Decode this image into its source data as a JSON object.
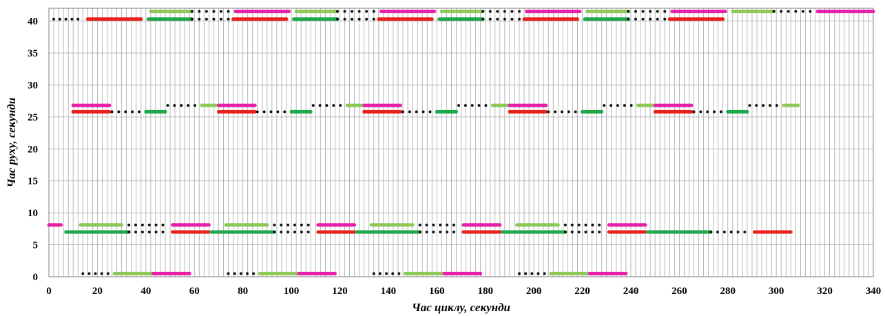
{
  "chart_data": {
    "type": "timeline",
    "xlabel": "Час циклу, секунди",
    "ylabel": "Час руху, секунди",
    "xlim": [
      0,
      340
    ],
    "ylim": [
      0,
      42
    ],
    "xticks": [
      "0",
      "20",
      "40",
      "60",
      "80",
      "100",
      "120",
      "140",
      "160",
      "180",
      "200",
      "220",
      "240",
      "260",
      "280",
      "300",
      "320",
      "340"
    ],
    "yticks": [
      "0",
      "5",
      "10",
      "15",
      "20",
      "25",
      "30",
      "35",
      "40"
    ],
    "grid": {
      "vertical_step": 2,
      "horizontal_step": 5
    },
    "colors": {
      "red": "#e8211d",
      "magenta": "#e71ea6",
      "green": "#1ea84a",
      "lightgreen": "#8dc956",
      "dots": "#111111"
    },
    "segments": [
      {
        "y": 40.3,
        "x0": 2,
        "x1": 12,
        "style": "dots"
      },
      {
        "y": 40.3,
        "x0": 16,
        "x1": 38,
        "style": "red"
      },
      {
        "y": 40.3,
        "x0": 41,
        "x1": 59,
        "style": "green"
      },
      {
        "y": 40.3,
        "x0": 59,
        "x1": 74,
        "style": "dots"
      },
      {
        "y": 40.3,
        "x0": 76,
        "x1": 98,
        "style": "red"
      },
      {
        "y": 40.3,
        "x0": 101,
        "x1": 119,
        "style": "green"
      },
      {
        "y": 40.3,
        "x0": 119,
        "x1": 134,
        "style": "dots"
      },
      {
        "y": 40.3,
        "x0": 136,
        "x1": 158,
        "style": "red"
      },
      {
        "y": 40.3,
        "x0": 161,
        "x1": 179,
        "style": "green"
      },
      {
        "y": 40.3,
        "x0": 179,
        "x1": 194,
        "style": "dots"
      },
      {
        "y": 40.3,
        "x0": 196,
        "x1": 218,
        "style": "red"
      },
      {
        "y": 40.3,
        "x0": 221,
        "x1": 239,
        "style": "green"
      },
      {
        "y": 40.3,
        "x0": 239,
        "x1": 254,
        "style": "dots"
      },
      {
        "y": 40.3,
        "x0": 256,
        "x1": 278,
        "style": "red"
      },
      {
        "y": 41.5,
        "x0": 42,
        "x1": 59,
        "style": "lightgreen"
      },
      {
        "y": 41.5,
        "x0": 59,
        "x1": 74,
        "style": "dots"
      },
      {
        "y": 41.5,
        "x0": 77,
        "x1": 99,
        "style": "magenta"
      },
      {
        "y": 41.5,
        "x0": 102,
        "x1": 119,
        "style": "lightgreen"
      },
      {
        "y": 41.5,
        "x0": 119,
        "x1": 134,
        "style": "dots"
      },
      {
        "y": 41.5,
        "x0": 137,
        "x1": 159,
        "style": "magenta"
      },
      {
        "y": 41.5,
        "x0": 162,
        "x1": 179,
        "style": "lightgreen"
      },
      {
        "y": 41.5,
        "x0": 179,
        "x1": 194,
        "style": "dots"
      },
      {
        "y": 41.5,
        "x0": 197,
        "x1": 219,
        "style": "magenta"
      },
      {
        "y": 41.5,
        "x0": 222,
        "x1": 239,
        "style": "lightgreen"
      },
      {
        "y": 41.5,
        "x0": 239,
        "x1": 254,
        "style": "dots"
      },
      {
        "y": 41.5,
        "x0": 257,
        "x1": 279,
        "style": "magenta"
      },
      {
        "y": 41.5,
        "x0": 282,
        "x1": 299,
        "style": "lightgreen"
      },
      {
        "y": 41.5,
        "x0": 299,
        "x1": 314,
        "style": "dots"
      },
      {
        "y": 41.5,
        "x0": 317,
        "x1": 340,
        "style": "magenta"
      },
      {
        "y": 26.8,
        "x0": 10,
        "x1": 25,
        "style": "magenta"
      },
      {
        "y": 26.8,
        "x0": 49,
        "x1": 63,
        "style": "dots"
      },
      {
        "y": 26.8,
        "x0": 63,
        "x1": 69,
        "style": "lightgreen"
      },
      {
        "y": 26.8,
        "x0": 70,
        "x1": 85,
        "style": "magenta"
      },
      {
        "y": 26.8,
        "x0": 109,
        "x1": 123,
        "style": "dots"
      },
      {
        "y": 26.8,
        "x0": 123,
        "x1": 129,
        "style": "lightgreen"
      },
      {
        "y": 26.8,
        "x0": 130,
        "x1": 145,
        "style": "magenta"
      },
      {
        "y": 26.8,
        "x0": 169,
        "x1": 183,
        "style": "dots"
      },
      {
        "y": 26.8,
        "x0": 183,
        "x1": 189,
        "style": "lightgreen"
      },
      {
        "y": 26.8,
        "x0": 190,
        "x1": 205,
        "style": "magenta"
      },
      {
        "y": 26.8,
        "x0": 229,
        "x1": 243,
        "style": "dots"
      },
      {
        "y": 26.8,
        "x0": 243,
        "x1": 249,
        "style": "lightgreen"
      },
      {
        "y": 26.8,
        "x0": 250,
        "x1": 265,
        "style": "magenta"
      },
      {
        "y": 26.8,
        "x0": 289,
        "x1": 303,
        "style": "dots"
      },
      {
        "y": 26.8,
        "x0": 303,
        "x1": 309,
        "style": "lightgreen"
      },
      {
        "y": 25.8,
        "x0": 10,
        "x1": 25,
        "style": "red"
      },
      {
        "y": 25.8,
        "x0": 26,
        "x1": 40,
        "style": "dots"
      },
      {
        "y": 25.8,
        "x0": 40,
        "x1": 48,
        "style": "green"
      },
      {
        "y": 25.8,
        "x0": 70,
        "x1": 85,
        "style": "red"
      },
      {
        "y": 25.8,
        "x0": 86,
        "x1": 100,
        "style": "dots"
      },
      {
        "y": 25.8,
        "x0": 100,
        "x1": 108,
        "style": "green"
      },
      {
        "y": 25.8,
        "x0": 130,
        "x1": 145,
        "style": "red"
      },
      {
        "y": 25.8,
        "x0": 146,
        "x1": 160,
        "style": "dots"
      },
      {
        "y": 25.8,
        "x0": 160,
        "x1": 168,
        "style": "green"
      },
      {
        "y": 25.8,
        "x0": 190,
        "x1": 205,
        "style": "red"
      },
      {
        "y": 25.8,
        "x0": 206,
        "x1": 220,
        "style": "dots"
      },
      {
        "y": 25.8,
        "x0": 220,
        "x1": 228,
        "style": "green"
      },
      {
        "y": 25.8,
        "x0": 250,
        "x1": 265,
        "style": "red"
      },
      {
        "y": 25.8,
        "x0": 266,
        "x1": 280,
        "style": "dots"
      },
      {
        "y": 25.8,
        "x0": 280,
        "x1": 288,
        "style": "green"
      },
      {
        "y": 8.1,
        "x0": 0,
        "x1": 5,
        "style": "magenta"
      },
      {
        "y": 8.1,
        "x0": 13,
        "x1": 30,
        "style": "lightgreen"
      },
      {
        "y": 8.1,
        "x0": 33,
        "x1": 47,
        "style": "dots"
      },
      {
        "y": 8.1,
        "x0": 51,
        "x1": 66,
        "style": "magenta"
      },
      {
        "y": 8.1,
        "x0": 73,
        "x1": 90,
        "style": "lightgreen"
      },
      {
        "y": 8.1,
        "x0": 93,
        "x1": 107,
        "style": "dots"
      },
      {
        "y": 8.1,
        "x0": 111,
        "x1": 126,
        "style": "magenta"
      },
      {
        "y": 8.1,
        "x0": 133,
        "x1": 150,
        "style": "lightgreen"
      },
      {
        "y": 8.1,
        "x0": 153,
        "x1": 167,
        "style": "dots"
      },
      {
        "y": 8.1,
        "x0": 171,
        "x1": 186,
        "style": "magenta"
      },
      {
        "y": 8.1,
        "x0": 193,
        "x1": 210,
        "style": "lightgreen"
      },
      {
        "y": 8.1,
        "x0": 213,
        "x1": 227,
        "style": "dots"
      },
      {
        "y": 8.1,
        "x0": 231,
        "x1": 246,
        "style": "magenta"
      },
      {
        "y": 7.0,
        "x0": 7,
        "x1": 33,
        "style": "green"
      },
      {
        "y": 7.0,
        "x0": 33,
        "x1": 47,
        "style": "dots"
      },
      {
        "y": 7.0,
        "x0": 51,
        "x1": 66,
        "style": "red"
      },
      {
        "y": 7.0,
        "x0": 67,
        "x1": 93,
        "style": "green"
      },
      {
        "y": 7.0,
        "x0": 93,
        "x1": 107,
        "style": "dots"
      },
      {
        "y": 7.0,
        "x0": 111,
        "x1": 126,
        "style": "red"
      },
      {
        "y": 7.0,
        "x0": 127,
        "x1": 153,
        "style": "green"
      },
      {
        "y": 7.0,
        "x0": 153,
        "x1": 167,
        "style": "dots"
      },
      {
        "y": 7.0,
        "x0": 171,
        "x1": 186,
        "style": "red"
      },
      {
        "y": 7.0,
        "x0": 187,
        "x1": 213,
        "style": "green"
      },
      {
        "y": 7.0,
        "x0": 213,
        "x1": 227,
        "style": "dots"
      },
      {
        "y": 7.0,
        "x0": 231,
        "x1": 246,
        "style": "red"
      },
      {
        "y": 7.0,
        "x0": 247,
        "x1": 273,
        "style": "green"
      },
      {
        "y": 7.0,
        "x0": 273,
        "x1": 287,
        "style": "dots"
      },
      {
        "y": 7.0,
        "x0": 291,
        "x1": 306,
        "style": "red"
      },
      {
        "y": 0.5,
        "x0": 14,
        "x1": 27,
        "style": "dots"
      },
      {
        "y": 0.5,
        "x0": 27,
        "x1": 42,
        "style": "lightgreen"
      },
      {
        "y": 0.5,
        "x0": 43,
        "x1": 58,
        "style": "magenta"
      },
      {
        "y": 0.5,
        "x0": 74,
        "x1": 87,
        "style": "dots"
      },
      {
        "y": 0.5,
        "x0": 87,
        "x1": 102,
        "style": "lightgreen"
      },
      {
        "y": 0.5,
        "x0": 103,
        "x1": 118,
        "style": "magenta"
      },
      {
        "y": 0.5,
        "x0": 134,
        "x1": 147,
        "style": "dots"
      },
      {
        "y": 0.5,
        "x0": 147,
        "x1": 162,
        "style": "lightgreen"
      },
      {
        "y": 0.5,
        "x0": 163,
        "x1": 178,
        "style": "magenta"
      },
      {
        "y": 0.5,
        "x0": 194,
        "x1": 207,
        "style": "dots"
      },
      {
        "y": 0.5,
        "x0": 207,
        "x1": 222,
        "style": "lightgreen"
      },
      {
        "y": 0.5,
        "x0": 223,
        "x1": 238,
        "style": "magenta"
      }
    ]
  }
}
